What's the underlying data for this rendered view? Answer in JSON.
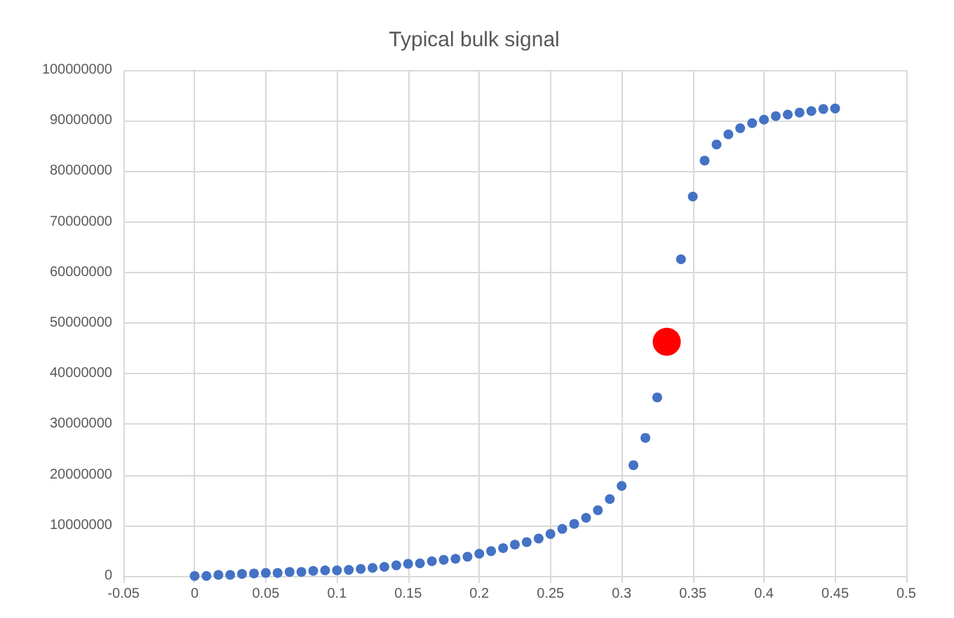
{
  "chart_data": {
    "type": "scatter",
    "title": "Typical bulk signal",
    "series": [
      {
        "color": "#4472c4",
        "x": [
          0,
          0.0083,
          0.0167,
          0.025,
          0.0333,
          0.0417,
          0.05,
          0.0583,
          0.0667,
          0.075,
          0.0833,
          0.0917,
          0.1,
          0.1083,
          0.1167,
          0.125,
          0.1333,
          0.1417,
          0.15,
          0.1583,
          0.1667,
          0.175,
          0.1833,
          0.1917,
          0.2,
          0.2083,
          0.2167,
          0.225,
          0.2333,
          0.2417,
          0.25,
          0.2583,
          0.2667,
          0.275,
          0.2833,
          0.2917,
          0.3,
          0.3083,
          0.3167,
          0.325,
          0.3417,
          0.35,
          0.3583,
          0.3667,
          0.375,
          0.3833,
          0.3917,
          0.4,
          0.4083,
          0.4167,
          0.425,
          0.4333,
          0.4417,
          0.45
        ],
        "values": [
          0,
          0,
          200000,
          200000,
          400000,
          500000,
          600000,
          600000,
          800000,
          800000,
          1000000,
          1100000,
          1100000,
          1200000,
          1400000,
          1600000,
          1800000,
          2100000,
          2400000,
          2500000,
          2900000,
          3200000,
          3400000,
          3800000,
          4400000,
          4900000,
          5500000,
          6200000,
          6700000,
          7400000,
          8300000,
          9300000,
          10300000,
          11500000,
          13000000,
          15200000,
          17800000,
          21900000,
          27300000,
          35300000,
          62600000,
          75000000,
          82100000,
          85300000,
          87300000,
          88500000,
          89500000,
          90200000,
          90900000,
          91200000,
          91600000,
          91900000,
          92300000,
          92400000
        ]
      },
      {
        "color": "#ff0000",
        "x": [
          0.3317
        ],
        "values": [
          46300000
        ]
      }
    ],
    "xlim": [
      -0.05,
      0.5
    ],
    "xticks": [
      -0.05,
      0,
      0.05,
      0.1,
      0.15,
      0.2,
      0.25,
      0.3,
      0.35,
      0.4,
      0.45,
      0.5
    ],
    "ylim": [
      0,
      100000000
    ],
    "yticks": [
      0,
      10000000,
      20000000,
      30000000,
      40000000,
      50000000,
      60000000,
      70000000,
      80000000,
      90000000,
      100000000
    ],
    "grid": true,
    "marker": "circle"
  }
}
